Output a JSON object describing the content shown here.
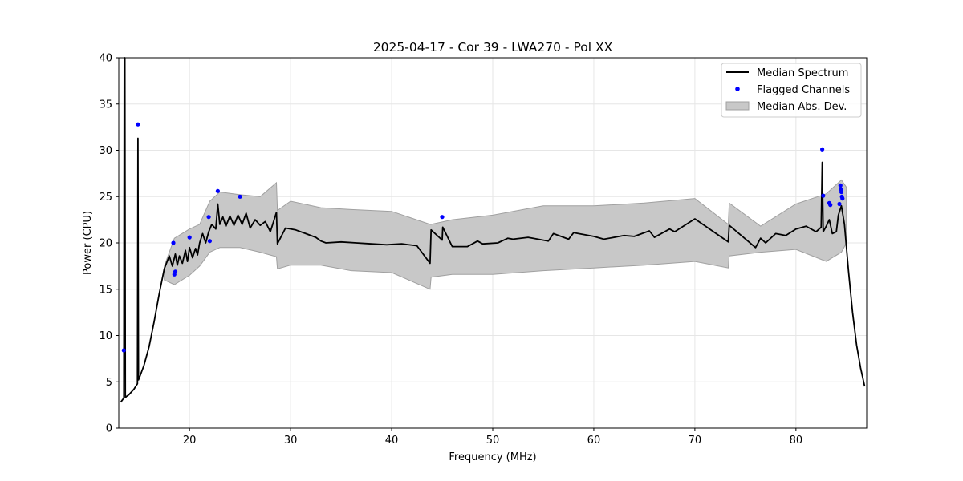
{
  "chart_data": {
    "type": "line",
    "title": "2025-04-17 - Cor 39 - LWA270 - Pol XX",
    "xlabel": "Frequency (MHz)",
    "ylabel": "Power (CPU)",
    "xlim": [
      13,
      87
    ],
    "ylim": [
      0,
      40
    ],
    "xticks": [
      20,
      30,
      40,
      50,
      60,
      70,
      80
    ],
    "yticks": [
      0,
      5,
      10,
      15,
      20,
      25,
      30,
      35,
      40
    ],
    "grid": true,
    "legend_position": "top-right",
    "legend": [
      "Median Spectrum",
      "Flagged Channels",
      "Median Abs. Dev."
    ],
    "series": [
      {
        "name": "Median Spectrum",
        "kind": "line",
        "color": "#000000",
        "x": [
          13.2,
          13.4,
          13.5,
          13.55,
          13.6,
          13.65,
          13.75,
          14.0,
          14.5,
          14.85,
          14.9,
          14.95,
          15.1,
          15.5,
          16.0,
          16.5,
          17.0,
          17.5,
          18.0,
          18.3,
          18.6,
          18.8,
          19.0,
          19.3,
          19.6,
          19.8,
          20.0,
          20.3,
          20.6,
          20.8,
          21.0,
          21.3,
          21.6,
          21.9,
          22.2,
          22.6,
          22.8,
          23.0,
          23.3,
          23.6,
          24.0,
          24.4,
          24.8,
          25.2,
          25.6,
          26.0,
          26.5,
          27.0,
          27.5,
          28.0,
          28.6,
          28.7,
          29.5,
          30.5,
          31.5,
          32.5,
          33.0,
          33.5,
          35.0,
          36.5,
          38.0,
          39.5,
          41.0,
          42.5,
          43.8,
          43.9,
          45.0,
          45.05,
          46.0,
          47.5,
          48.5,
          49.0,
          50.5,
          51.5,
          52.0,
          53.5,
          55.5,
          56.0,
          57.5,
          58.0,
          60.0,
          61.0,
          63.0,
          64.0,
          65.5,
          66.0,
          67.5,
          68.0,
          70.0,
          73.3,
          73.4,
          76.0,
          76.5,
          77.0,
          78.0,
          79.0,
          80.0,
          81.0,
          82.0,
          82.5,
          82.6,
          82.7,
          82.8,
          83.0,
          83.3,
          83.6,
          84.0,
          84.2,
          84.5,
          84.8,
          85.2,
          85.6,
          86.0,
          86.4,
          86.8
        ],
        "y": [
          2.8,
          3.1,
          3.2,
          40,
          40,
          3.3,
          3.4,
          3.6,
          4.2,
          4.8,
          31.3,
          5.2,
          5.6,
          6.8,
          8.8,
          11.5,
          14.5,
          17.2,
          18.6,
          17.5,
          18.8,
          17.6,
          18.6,
          17.8,
          19.2,
          18.0,
          19.5,
          18.4,
          19.4,
          18.7,
          20.0,
          21.0,
          20.0,
          21.2,
          22.0,
          21.5,
          24.2,
          22.0,
          22.8,
          21.8,
          22.9,
          21.9,
          23.0,
          22.0,
          23.2,
          21.6,
          22.5,
          21.9,
          22.3,
          21.2,
          23.3,
          19.9,
          21.6,
          21.4,
          21.0,
          20.6,
          20.2,
          20.0,
          20.1,
          20.0,
          19.9,
          19.8,
          19.9,
          19.7,
          17.8,
          21.4,
          20.3,
          21.7,
          19.6,
          19.6,
          20.2,
          19.9,
          20.0,
          20.5,
          20.4,
          20.6,
          20.2,
          21.0,
          20.4,
          21.1,
          20.7,
          20.4,
          20.8,
          20.7,
          21.3,
          20.6,
          21.5,
          21.2,
          22.6,
          20.1,
          21.9,
          19.5,
          20.5,
          20.0,
          21.0,
          20.8,
          21.5,
          21.8,
          21.2,
          21.7,
          28.7,
          21.2,
          21.4,
          21.8,
          22.5,
          21.0,
          21.2,
          23.0,
          24.0,
          22.0,
          17.0,
          12.5,
          9.0,
          6.5,
          4.5
        ]
      },
      {
        "name": "Median Abs. Dev.",
        "kind": "band",
        "color": "#c8c8c8",
        "edge_color": "#a0a0a0",
        "x": [
          17.5,
          18.5,
          20.0,
          21.0,
          22.0,
          23.0,
          25.0,
          27.0,
          28.6,
          28.7,
          30.0,
          33.0,
          36.0,
          40.0,
          43.8,
          43.9,
          46.0,
          50.0,
          55.0,
          60.0,
          65.0,
          70.0,
          73.3,
          73.4,
          76.5,
          80.0,
          83.0,
          84.5,
          85.0
        ],
        "lower": [
          16.0,
          15.5,
          16.5,
          17.5,
          19.0,
          19.5,
          19.5,
          19.0,
          18.5,
          17.2,
          17.6,
          17.6,
          17.0,
          16.8,
          15.0,
          16.3,
          16.6,
          16.6,
          17.0,
          17.3,
          17.6,
          18.0,
          17.3,
          18.6,
          19.0,
          19.3,
          18.0,
          19.0,
          20.0
        ],
        "upper": [
          17.5,
          20.5,
          21.5,
          22.0,
          24.5,
          25.5,
          25.2,
          25.0,
          26.5,
          23.5,
          24.5,
          23.8,
          23.6,
          23.4,
          22.0,
          22.0,
          22.5,
          23.0,
          24.0,
          24.0,
          24.3,
          24.8,
          22.0,
          24.3,
          21.8,
          24.2,
          25.3,
          26.8,
          26.0
        ]
      },
      {
        "name": "Flagged Channels",
        "kind": "scatter",
        "color": "#0000ff",
        "x": [
          13.5,
          14.9,
          18.4,
          18.5,
          18.6,
          20.0,
          21.9,
          22.0,
          22.8,
          25.0,
          45.0,
          82.6,
          82.7,
          83.3,
          83.4,
          84.3,
          84.4,
          84.45,
          84.5,
          84.55,
          84.6
        ],
        "y": [
          8.4,
          32.8,
          20.0,
          16.6,
          16.9,
          20.6,
          22.8,
          20.2,
          25.6,
          25.0,
          22.8,
          30.1,
          25.1,
          24.3,
          24.1,
          24.2,
          26.2,
          25.8,
          25.5,
          25.0,
          24.8
        ]
      }
    ]
  }
}
